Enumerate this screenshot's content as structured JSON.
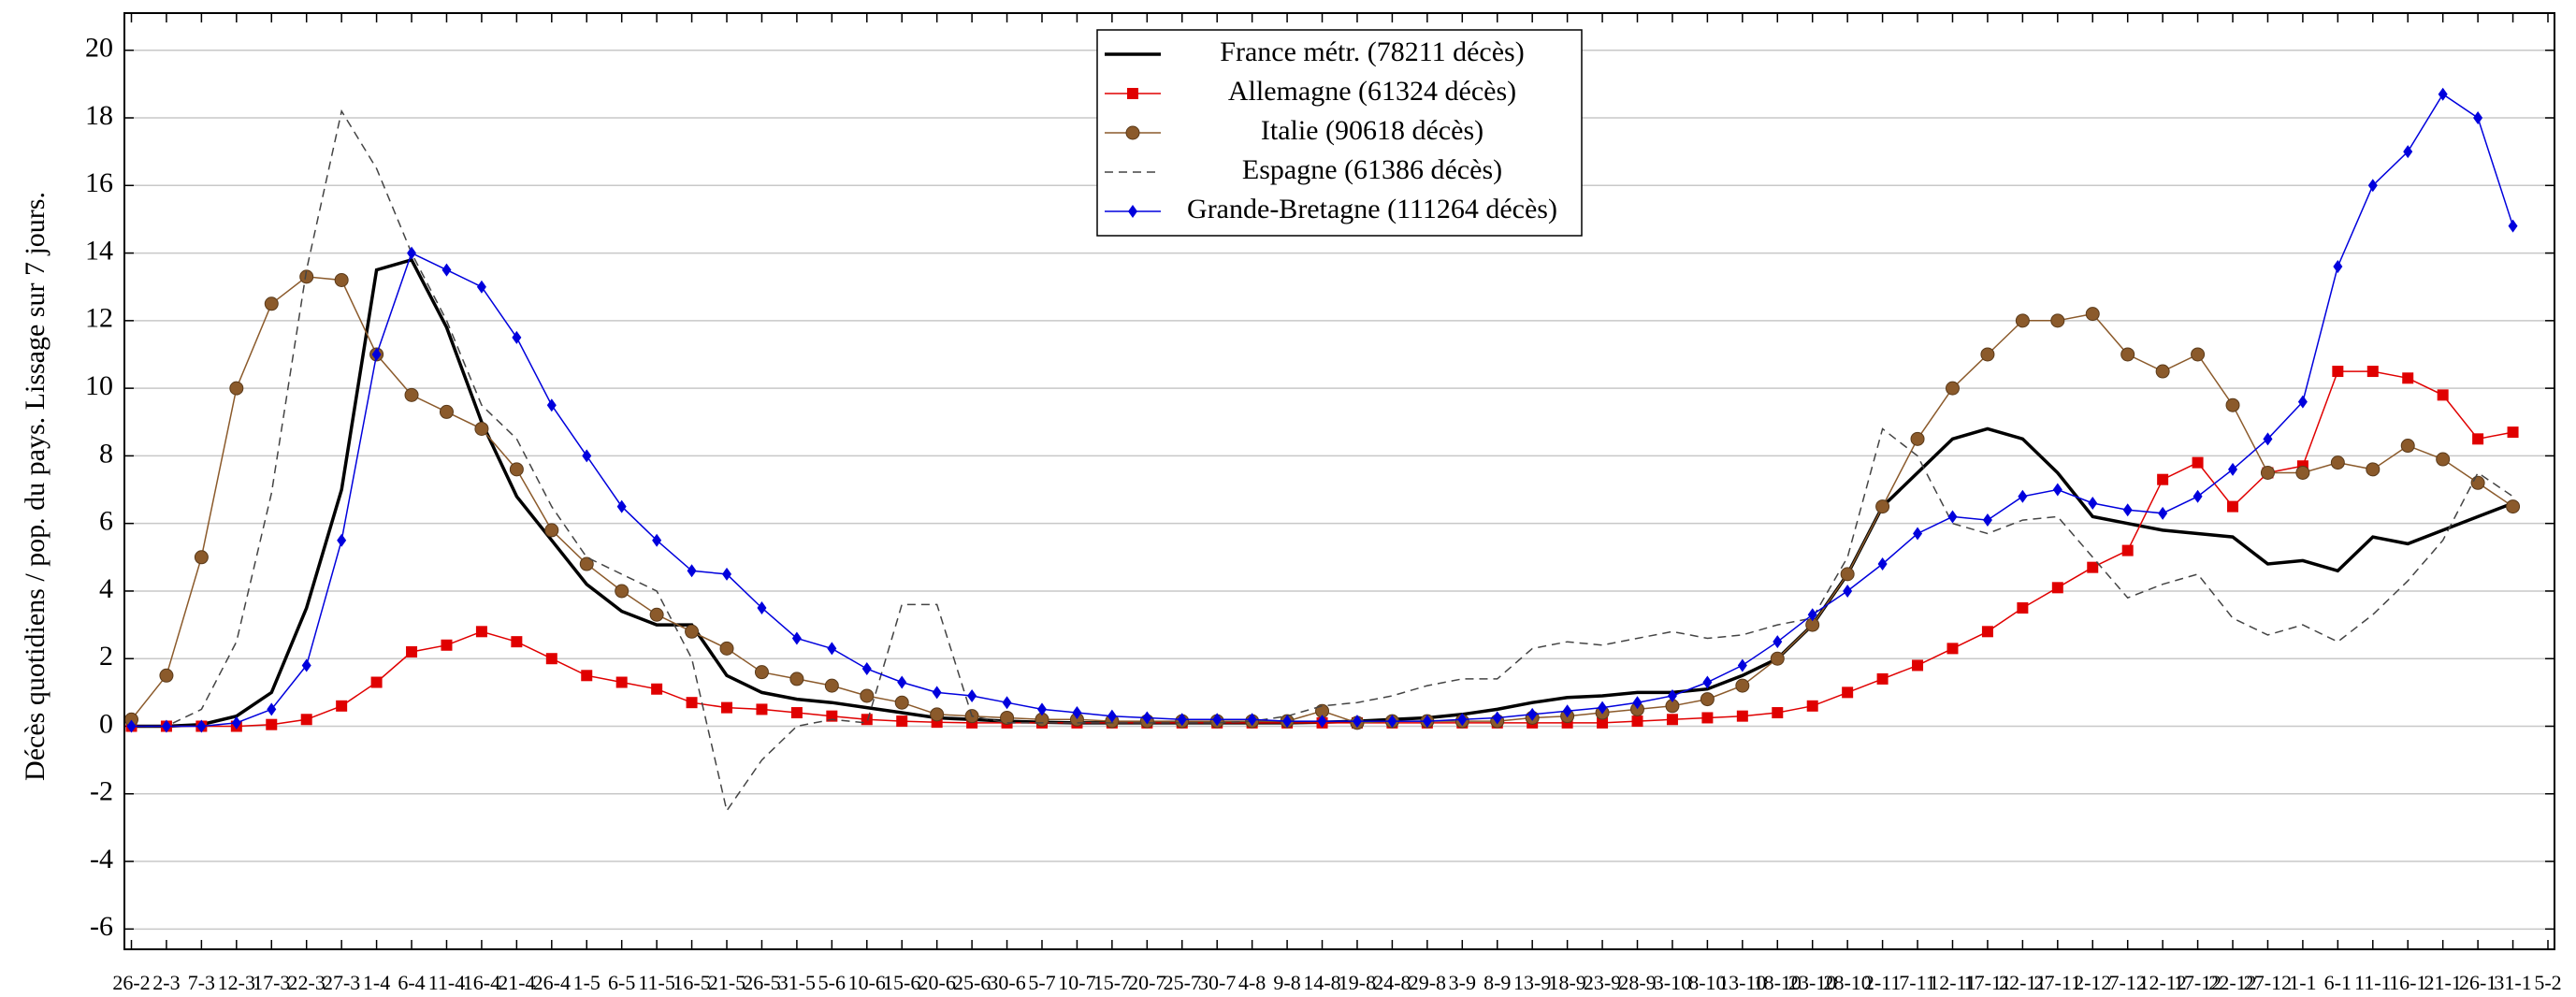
{
  "chart_data": {
    "type": "line",
    "y_label": "Décès quotidiens / pop. du pays. Lissage sur 7 jours.",
    "categories": [
      "26-2",
      "2-3",
      "7-3",
      "12-3",
      "17-3",
      "22-3",
      "27-3",
      "1-4",
      "6-4",
      "11-4",
      "16-4",
      "21-4",
      "26-4",
      "1-5",
      "6-5",
      "11-5",
      "16-5",
      "21-5",
      "26-5",
      "31-5",
      "5-6",
      "10-6",
      "15-6",
      "20-6",
      "25-6",
      "30-6",
      "5-7",
      "10-7",
      "15-7",
      "20-7",
      "25-7",
      "30-7",
      "4-8",
      "9-8",
      "14-8",
      "19-8",
      "24-8",
      "29-8",
      "3-9",
      "8-9",
      "13-9",
      "18-9",
      "23-9",
      "28-9",
      "3-10",
      "8-10",
      "13-10",
      "18-10",
      "23-10",
      "28-10",
      "2-11",
      "7-11",
      "12-11",
      "17-11",
      "22-11",
      "27-11",
      "2-12",
      "7-12",
      "12-12",
      "17-12",
      "22-12",
      "27-12",
      "1-1",
      "6-1",
      "11-1",
      "16-1",
      "21-1",
      "26-1",
      "31-1",
      "5-2"
    ],
    "ylim": [
      -6.6,
      21.1
    ],
    "yticks": [
      -6,
      -4,
      -2,
      0,
      2,
      4,
      6,
      8,
      10,
      12,
      14,
      16,
      18,
      20
    ],
    "grid": true,
    "legend": "top",
    "series": [
      {
        "name": "France métr. (78211 décès)",
        "color": "#000000",
        "marker": "none",
        "dash": false,
        "values": [
          0,
          0,
          0.05,
          0.3,
          1,
          3.5,
          7,
          13.5,
          13.8,
          11.8,
          9,
          6.8,
          5.5,
          4.2,
          3.4,
          3,
          3,
          1.5,
          1,
          0.8,
          0.7,
          0.55,
          0.4,
          0.25,
          0.2,
          0.15,
          0.12,
          0.1,
          0.1,
          0.1,
          0.1,
          0.1,
          0.1,
          0.1,
          0.12,
          0.15,
          0.2,
          0.25,
          0.35,
          0.5,
          0.7,
          0.85,
          0.9,
          1,
          1,
          1.1,
          1.5,
          2,
          3,
          4.5,
          6.5,
          7.5,
          8.5,
          8.8,
          8.5,
          7.5,
          6.2,
          6,
          5.8,
          5.7,
          5.6,
          4.8,
          4.9,
          4.6,
          5.6,
          5.4,
          5.8,
          6.2,
          6.6,
          null
        ]
      },
      {
        "name": "Allemagne (61324 décès)",
        "color": "#e00000",
        "marker": "square",
        "dash": false,
        "values": [
          0,
          0,
          0,
          0,
          0.05,
          0.2,
          0.6,
          1.3,
          2.2,
          2.4,
          2.8,
          2.5,
          2,
          1.5,
          1.3,
          1.1,
          0.7,
          0.55,
          0.5,
          0.4,
          0.3,
          0.2,
          0.15,
          0.12,
          0.1,
          0.1,
          0.1,
          0.1,
          0.1,
          0.1,
          0.1,
          0.1,
          0.1,
          0.1,
          0.1,
          0.1,
          0.1,
          0.1,
          0.1,
          0.1,
          0.1,
          0.1,
          0.1,
          0.15,
          0.2,
          0.25,
          0.3,
          0.4,
          0.6,
          1,
          1.4,
          1.8,
          2.3,
          2.8,
          3.5,
          4.1,
          4.7,
          5.2,
          7.3,
          7.8,
          6.5,
          7.5,
          7.7,
          10.5,
          10.5,
          10.3,
          9.8,
          8.5,
          8.7,
          null
        ]
      },
      {
        "name": "Italie (90618 décès)",
        "color": "#8b5a2b",
        "marker": "circle",
        "dash": false,
        "values": [
          0.2,
          1.5,
          5,
          10,
          12.5,
          13.3,
          13.2,
          11,
          9.8,
          9.3,
          8.8,
          7.6,
          5.8,
          4.8,
          4,
          3.3,
          2.8,
          2.3,
          1.6,
          1.4,
          1.2,
          0.9,
          0.7,
          0.35,
          0.3,
          0.25,
          0.2,
          0.2,
          0.15,
          0.15,
          0.15,
          0.15,
          0.15,
          0.15,
          0.45,
          0.1,
          0.15,
          0.15,
          0.15,
          0.15,
          0.25,
          0.3,
          0.4,
          0.5,
          0.6,
          0.8,
          1.2,
          2,
          3,
          4.5,
          6.5,
          8.5,
          10,
          11,
          12,
          12,
          12.2,
          11,
          10.5,
          11,
          9.5,
          7.5,
          7.5,
          7.8,
          7.6,
          8.3,
          7.9,
          7.2,
          6.5,
          null
        ]
      },
      {
        "name": "Espagne (61386 décès)",
        "color": "#444444",
        "marker": "none",
        "dash": true,
        "values": [
          0,
          0,
          0.5,
          2.5,
          6.9,
          13.5,
          18.2,
          16.5,
          14,
          12,
          9.5,
          8.5,
          6.5,
          5,
          4.5,
          4,
          2,
          -2.5,
          -1,
          0,
          0.2,
          0.1,
          3.6,
          3.6,
          0.3,
          0.1,
          0.1,
          0.1,
          0.1,
          0.1,
          0.1,
          0.1,
          0.15,
          0.3,
          0.6,
          0.7,
          0.9,
          1.2,
          1.4,
          1.4,
          2.3,
          2.5,
          2.4,
          2.6,
          2.8,
          2.6,
          2.7,
          3,
          3.2,
          5,
          8.8,
          8,
          6,
          5.7,
          6.1,
          6.2,
          5,
          3.8,
          4.2,
          4.5,
          3.2,
          2.7,
          3,
          2.5,
          3.3,
          4.3,
          5.5,
          7.5,
          6.8,
          null
        ]
      },
      {
        "name": "Grande-Bretagne (111264 décès)",
        "color": "#0000dd",
        "marker": "diamond",
        "dash": false,
        "values": [
          0,
          0,
          0,
          0.1,
          0.5,
          1.8,
          5.5,
          11,
          14,
          13.5,
          13,
          11.5,
          9.5,
          8,
          6.5,
          5.5,
          4.6,
          4.5,
          3.5,
          2.6,
          2.3,
          1.7,
          1.3,
          1,
          0.9,
          0.7,
          0.5,
          0.4,
          0.3,
          0.25,
          0.2,
          0.2,
          0.2,
          0.15,
          0.15,
          0.15,
          0.15,
          0.15,
          0.2,
          0.25,
          0.35,
          0.45,
          0.55,
          0.7,
          0.9,
          1.3,
          1.8,
          2.5,
          3.3,
          4,
          4.8,
          5.7,
          6.2,
          6.1,
          6.8,
          7,
          6.6,
          6.4,
          6.3,
          6.8,
          7.6,
          8.5,
          9.6,
          13.6,
          16,
          17,
          18.7,
          18,
          14.8,
          null
        ]
      }
    ]
  }
}
